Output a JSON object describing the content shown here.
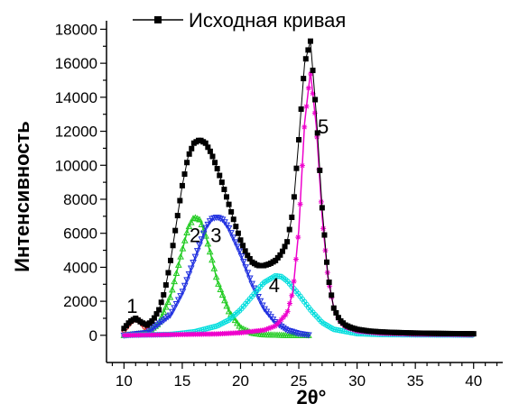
{
  "chart_data": {
    "type": "line",
    "xlabel": "2θ°",
    "ylabel": "Интенсивность",
    "xlim": [
      8.5,
      42.5
    ],
    "ylim": [
      -1600,
      18500
    ],
    "xticks": [
      10,
      15,
      20,
      25,
      30,
      35,
      40
    ],
    "yticks": [
      0,
      2000,
      4000,
      6000,
      8000,
      10000,
      12000,
      14000,
      16000,
      18000
    ],
    "grid": false,
    "legend": {
      "placement": "top",
      "entries": [
        "Исходная кривая"
      ]
    },
    "peak_labels": [
      {
        "text": "1",
        "x": 10.7,
        "y": 1750
      },
      {
        "text": "2",
        "x": 16.1,
        "y": 5900
      },
      {
        "text": "3",
        "x": 17.9,
        "y": 5900
      },
      {
        "text": "4",
        "x": 22.9,
        "y": 2950
      },
      {
        "text": "5",
        "x": 27.1,
        "y": 12300
      }
    ],
    "series": [
      {
        "name": "Исходная кривая",
        "marker": "square",
        "color": "#000000",
        "x": [
          10,
          10.5,
          11,
          11.5,
          12,
          12.5,
          13,
          13.5,
          14,
          14.5,
          15,
          15.5,
          16,
          16.5,
          17,
          17.5,
          18,
          18.5,
          19,
          19.5,
          20,
          20.5,
          21,
          21.5,
          22,
          22.5,
          23,
          23.5,
          24,
          24.5,
          25,
          25.5,
          26,
          26.5,
          27,
          27.5,
          28,
          28.5,
          29,
          29.5,
          30,
          31,
          32,
          33,
          34,
          35,
          36,
          37,
          38,
          39,
          40
        ],
        "values": [
          400,
          800,
          1000,
          750,
          600,
          900,
          1500,
          2600,
          4400,
          6600,
          8800,
          10500,
          11300,
          11500,
          11300,
          10700,
          9800,
          8800,
          7700,
          6600,
          5600,
          4800,
          4300,
          4100,
          4100,
          4200,
          4400,
          4800,
          5500,
          7300,
          11500,
          16000,
          17300,
          13000,
          7500,
          3500,
          1600,
          900,
          600,
          450,
          350,
          250,
          200,
          170,
          150,
          130,
          120,
          110,
          100,
          95,
          90
        ]
      },
      {
        "name": "1",
        "marker": "circle",
        "color": "#e01010",
        "x": [
          10,
          10.5,
          11,
          11.5,
          12
        ],
        "values": [
          300,
          750,
          1000,
          750,
          300
        ]
      },
      {
        "name": "2",
        "marker": "triangle-up",
        "color": "#22cc22",
        "x": [
          10,
          12,
          13,
          14,
          15,
          15.5,
          16,
          16.5,
          17,
          17.5,
          18,
          19,
          20,
          21,
          22,
          24,
          26
        ],
        "values": [
          0,
          150,
          700,
          2300,
          5000,
          6300,
          6950,
          6800,
          5900,
          4600,
          3200,
          1400,
          450,
          130,
          40,
          0,
          0
        ]
      },
      {
        "name": "3",
        "marker": "triangle-down",
        "color": "#2030e0",
        "x": [
          10,
          12,
          14,
          15,
          16,
          17,
          17.5,
          18,
          18.5,
          19,
          20,
          21,
          22,
          23,
          24,
          25,
          26
        ],
        "values": [
          0,
          150,
          1200,
          2500,
          4400,
          6300,
          6850,
          6950,
          6800,
          6300,
          4800,
          3000,
          1600,
          750,
          300,
          100,
          0
        ]
      },
      {
        "name": "4",
        "marker": "circle",
        "color": "#00dddd",
        "x": [
          10,
          14,
          16,
          18,
          19,
          20,
          21,
          22,
          23,
          23.5,
          24,
          25,
          26,
          27,
          28,
          30,
          32,
          35,
          38,
          40
        ],
        "values": [
          0,
          50,
          200,
          550,
          900,
          1500,
          2300,
          3100,
          3500,
          3450,
          3200,
          2400,
          1500,
          750,
          350,
          100,
          50,
          30,
          20,
          10
        ]
      },
      {
        "name": "5",
        "marker": "star",
        "color": "#ee00cc",
        "x": [
          10,
          14,
          18,
          20,
          22,
          23,
          24,
          24.5,
          25,
          25.5,
          26,
          26.5,
          27,
          27.5,
          28,
          28.5,
          29,
          30,
          32,
          35,
          40
        ],
        "values": [
          0,
          40,
          80,
          150,
          300,
          550,
          1300,
          2600,
          6200,
          12500,
          15500,
          12300,
          7000,
          3400,
          1600,
          850,
          500,
          250,
          120,
          60,
          30
        ]
      }
    ]
  }
}
